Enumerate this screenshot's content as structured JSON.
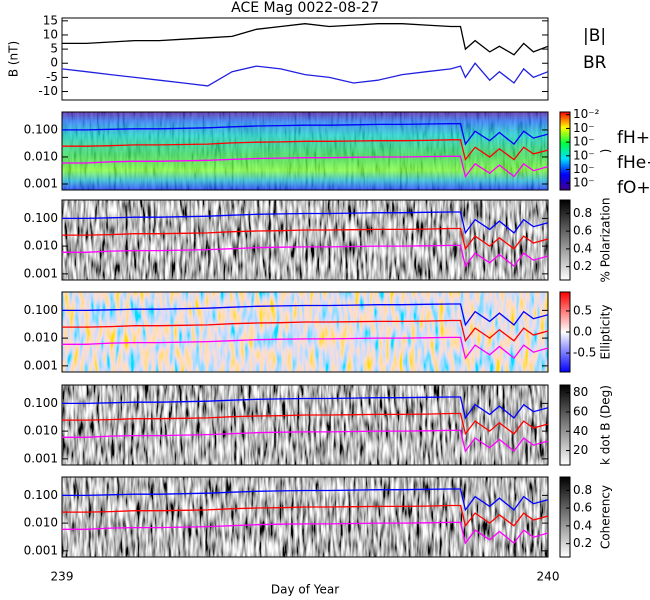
{
  "chart_data": [
    {
      "type": "line",
      "title": "ACE Mag 0022-08-27",
      "ylabel": "B (nT)",
      "ylim": [
        -13,
        16
      ],
      "yticks": [
        -10,
        -5,
        0,
        5,
        10,
        15
      ],
      "xlim": [
        239,
        240
      ],
      "legend": "right",
      "x": [
        239,
        239.05,
        239.1,
        239.15,
        239.2,
        239.25,
        239.3,
        239.35,
        239.4,
        239.45,
        239.5,
        239.55,
        239.6,
        239.65,
        239.7,
        239.75,
        239.8,
        239.82,
        239.83,
        239.85,
        239.88,
        239.9,
        239.93,
        239.95,
        239.97,
        240
      ],
      "series": [
        {
          "name": "|B|",
          "color": "#000000",
          "values": [
            7,
            7,
            7.5,
            8,
            8,
            8.5,
            9,
            9.5,
            12,
            13,
            14,
            13,
            13.5,
            14,
            14,
            13.5,
            13,
            13,
            5,
            8,
            4,
            6,
            3,
            7,
            4,
            6
          ]
        },
        {
          "name": "BR",
          "color": "#2020e0",
          "values": [
            -2,
            -3,
            -4,
            -5,
            -6,
            -7,
            -8,
            -3,
            -1,
            -2,
            -4,
            -5,
            -7,
            -6,
            -4,
            -3,
            -2,
            -1,
            -5,
            0,
            -6,
            -3,
            -7,
            -2,
            -5,
            -3
          ]
        }
      ]
    },
    {
      "type": "line",
      "log_y": true,
      "ylim": [
        0.0006,
        0.46
      ],
      "yticks": [
        0.001,
        {
          "value": 0.01,
          "label": "0.010"
        },
        {
          "value": 0.1,
          "label": "0.100"
        }
      ],
      "xlim": [
        239,
        240
      ],
      "legend": "right",
      "colorbar": {
        "label": ")",
        "lim": [
          -7.5,
          -1.8
        ],
        "ticks": [
          {
            "value": -2,
            "label": "10⁻²"
          },
          {
            "value": -3,
            "label": "10⁻"
          },
          {
            "value": -4,
            "label": "10⁻"
          },
          {
            "value": -5,
            "label": "10⁻"
          },
          {
            "value": -6,
            "label": "10⁻"
          },
          {
            "value": -7,
            "label": "10⁻"
          }
        ]
      },
      "x": [
        239,
        239.05,
        239.1,
        239.15,
        239.2,
        239.25,
        239.3,
        239.35,
        239.4,
        239.45,
        239.5,
        239.55,
        239.6,
        239.65,
        239.7,
        239.75,
        239.8,
        239.82,
        239.83,
        239.85,
        239.88,
        239.9,
        239.93,
        239.95,
        239.97,
        240
      ],
      "series": [
        {
          "name": "fH+",
          "color": "#0000ff",
          "values": [
            0.1,
            0.1,
            0.105,
            0.11,
            0.11,
            0.115,
            0.12,
            0.13,
            0.14,
            0.145,
            0.15,
            0.15,
            0.155,
            0.16,
            0.16,
            0.165,
            0.17,
            0.17,
            0.03,
            0.09,
            0.04,
            0.08,
            0.03,
            0.09,
            0.05,
            0.07
          ]
        },
        {
          "name": "fHe+",
          "color": "#ff0000",
          "values": [
            0.025,
            0.025,
            0.026,
            0.028,
            0.028,
            0.029,
            0.03,
            0.033,
            0.035,
            0.036,
            0.038,
            0.038,
            0.039,
            0.04,
            0.04,
            0.041,
            0.043,
            0.043,
            0.008,
            0.023,
            0.01,
            0.02,
            0.008,
            0.023,
            0.013,
            0.018
          ]
        },
        {
          "name": "fO+",
          "color": "#ff00ff",
          "values": [
            0.006,
            0.006,
            0.0066,
            0.0069,
            0.0069,
            0.0072,
            0.0075,
            0.0081,
            0.0088,
            0.0091,
            0.0094,
            0.0094,
            0.0097,
            0.01,
            0.01,
            0.0103,
            0.0106,
            0.0106,
            0.0019,
            0.0056,
            0.0025,
            0.005,
            0.0019,
            0.0056,
            0.0031,
            0.0044
          ]
        }
      ]
    },
    {
      "type": "line",
      "log_y": true,
      "ylim": [
        0.0006,
        0.46
      ],
      "yticks": [
        0.001,
        {
          "value": 0.01,
          "label": "0.010"
        },
        {
          "value": 0.1,
          "label": "0.100"
        }
      ],
      "xlim": [
        239,
        240
      ],
      "colorbar": {
        "label": "% Polarization",
        "lim": [
          0.05,
          0.95
        ],
        "ticks": [
          0.2,
          0.4,
          0.6,
          0.8
        ]
      },
      "x": [
        239,
        239.05,
        239.1,
        239.15,
        239.2,
        239.25,
        239.3,
        239.35,
        239.4,
        239.45,
        239.5,
        239.55,
        239.6,
        239.65,
        239.7,
        239.75,
        239.8,
        239.82,
        239.83,
        239.85,
        239.88,
        239.9,
        239.93,
        239.95,
        239.97,
        240
      ],
      "series": [
        {
          "color": "#0000ff",
          "values": [
            0.1,
            0.1,
            0.105,
            0.11,
            0.11,
            0.115,
            0.12,
            0.13,
            0.14,
            0.145,
            0.15,
            0.15,
            0.155,
            0.16,
            0.16,
            0.165,
            0.17,
            0.17,
            0.03,
            0.09,
            0.04,
            0.08,
            0.03,
            0.09,
            0.05,
            0.07
          ]
        },
        {
          "color": "#ff0000",
          "values": [
            0.025,
            0.025,
            0.026,
            0.028,
            0.028,
            0.029,
            0.03,
            0.033,
            0.035,
            0.036,
            0.038,
            0.038,
            0.039,
            0.04,
            0.04,
            0.041,
            0.043,
            0.043,
            0.008,
            0.023,
            0.01,
            0.02,
            0.008,
            0.023,
            0.013,
            0.018
          ]
        },
        {
          "color": "#ff00ff",
          "values": [
            0.006,
            0.006,
            0.0066,
            0.0069,
            0.0069,
            0.0072,
            0.0075,
            0.0081,
            0.0088,
            0.0091,
            0.0094,
            0.0094,
            0.0097,
            0.01,
            0.01,
            0.0103,
            0.0106,
            0.0106,
            0.0019,
            0.0056,
            0.0025,
            0.005,
            0.0019,
            0.0056,
            0.0031,
            0.0044
          ]
        }
      ]
    },
    {
      "type": "line",
      "log_y": true,
      "ylim": [
        0.0006,
        0.46
      ],
      "yticks": [
        0.001,
        {
          "value": 0.01,
          "label": "0.010"
        },
        {
          "value": 0.1,
          "label": "0.100"
        }
      ],
      "xlim": [
        239,
        240
      ],
      "colorbar": {
        "label": "Ellipticity",
        "lim": [
          -0.95,
          0.95
        ],
        "ticks": [
          -0.5,
          {
            "value": 0,
            "label": "0.0"
          },
          0.5
        ]
      },
      "x": [
        239,
        239.05,
        239.1,
        239.15,
        239.2,
        239.25,
        239.3,
        239.35,
        239.4,
        239.45,
        239.5,
        239.55,
        239.6,
        239.65,
        239.7,
        239.75,
        239.8,
        239.82,
        239.83,
        239.85,
        239.88,
        239.9,
        239.93,
        239.95,
        239.97,
        240
      ],
      "series": [
        {
          "color": "#0000ff",
          "values": [
            0.1,
            0.1,
            0.105,
            0.11,
            0.11,
            0.115,
            0.12,
            0.13,
            0.14,
            0.145,
            0.15,
            0.15,
            0.155,
            0.16,
            0.16,
            0.165,
            0.17,
            0.17,
            0.03,
            0.09,
            0.04,
            0.08,
            0.03,
            0.09,
            0.05,
            0.07
          ]
        },
        {
          "color": "#ff0000",
          "values": [
            0.025,
            0.025,
            0.026,
            0.028,
            0.028,
            0.029,
            0.03,
            0.033,
            0.035,
            0.036,
            0.038,
            0.038,
            0.039,
            0.04,
            0.04,
            0.041,
            0.043,
            0.043,
            0.008,
            0.023,
            0.01,
            0.02,
            0.008,
            0.023,
            0.013,
            0.018
          ]
        },
        {
          "color": "#ff00ff",
          "values": [
            0.006,
            0.006,
            0.0066,
            0.0069,
            0.0069,
            0.0072,
            0.0075,
            0.0081,
            0.0088,
            0.0091,
            0.0094,
            0.0094,
            0.0097,
            0.01,
            0.01,
            0.0103,
            0.0106,
            0.0106,
            0.0019,
            0.0056,
            0.0025,
            0.005,
            0.0019,
            0.0056,
            0.0031,
            0.0044
          ]
        }
      ]
    },
    {
      "type": "line",
      "log_y": true,
      "ylim": [
        0.0006,
        0.46
      ],
      "yticks": [
        0.001,
        {
          "value": 0.01,
          "label": "0.010"
        },
        {
          "value": 0.1,
          "label": "0.100"
        }
      ],
      "xlim": [
        239,
        240
      ],
      "colorbar": {
        "label": "k dot B (Deg)",
        "lim": [
          5,
          88
        ],
        "ticks": [
          20,
          40,
          60,
          80
        ]
      },
      "x": [
        239,
        239.05,
        239.1,
        239.15,
        239.2,
        239.25,
        239.3,
        239.35,
        239.4,
        239.45,
        239.5,
        239.55,
        239.6,
        239.65,
        239.7,
        239.75,
        239.8,
        239.82,
        239.83,
        239.85,
        239.88,
        239.9,
        239.93,
        239.95,
        239.97,
        240
      ],
      "series": [
        {
          "color": "#0000ff",
          "values": [
            0.1,
            0.1,
            0.105,
            0.11,
            0.11,
            0.115,
            0.12,
            0.13,
            0.14,
            0.145,
            0.15,
            0.15,
            0.155,
            0.16,
            0.16,
            0.165,
            0.17,
            0.17,
            0.03,
            0.09,
            0.04,
            0.08,
            0.03,
            0.09,
            0.05,
            0.07
          ]
        },
        {
          "color": "#ff0000",
          "values": [
            0.025,
            0.025,
            0.026,
            0.028,
            0.028,
            0.029,
            0.03,
            0.033,
            0.035,
            0.036,
            0.038,
            0.038,
            0.039,
            0.04,
            0.04,
            0.041,
            0.043,
            0.043,
            0.008,
            0.023,
            0.01,
            0.02,
            0.008,
            0.023,
            0.013,
            0.018
          ]
        },
        {
          "color": "#ff00ff",
          "values": [
            0.006,
            0.006,
            0.0066,
            0.0069,
            0.0069,
            0.0072,
            0.0075,
            0.0081,
            0.0088,
            0.0091,
            0.0094,
            0.0094,
            0.0097,
            0.01,
            0.01,
            0.0103,
            0.0106,
            0.0106,
            0.0019,
            0.0056,
            0.0025,
            0.005,
            0.0019,
            0.0056,
            0.0031,
            0.0044
          ]
        }
      ]
    },
    {
      "type": "line",
      "log_y": true,
      "ylim": [
        0.0006,
        0.46
      ],
      "yticks": [
        0.001,
        {
          "value": 0.01,
          "label": "0.010"
        },
        {
          "value": 0.1,
          "label": "0.100"
        }
      ],
      "xlim": [
        239,
        240
      ],
      "xticks": [
        239,
        240
      ],
      "xlabel": "Day of Year",
      "colorbar": {
        "label": "Coherency",
        "lim": [
          0.05,
          0.95
        ],
        "ticks": [
          0.2,
          0.4,
          0.6,
          0.8
        ]
      },
      "x": [
        239,
        239.05,
        239.1,
        239.15,
        239.2,
        239.25,
        239.3,
        239.35,
        239.4,
        239.45,
        239.5,
        239.55,
        239.6,
        239.65,
        239.7,
        239.75,
        239.8,
        239.82,
        239.83,
        239.85,
        239.88,
        239.9,
        239.93,
        239.95,
        239.97,
        240
      ],
      "series": [
        {
          "color": "#0000ff",
          "values": [
            0.1,
            0.1,
            0.105,
            0.11,
            0.11,
            0.115,
            0.12,
            0.13,
            0.14,
            0.145,
            0.15,
            0.15,
            0.155,
            0.16,
            0.16,
            0.165,
            0.17,
            0.17,
            0.03,
            0.09,
            0.04,
            0.08,
            0.03,
            0.09,
            0.05,
            0.07
          ]
        },
        {
          "color": "#ff0000",
          "values": [
            0.025,
            0.025,
            0.026,
            0.028,
            0.028,
            0.029,
            0.03,
            0.033,
            0.035,
            0.036,
            0.038,
            0.038,
            0.039,
            0.04,
            0.04,
            0.041,
            0.043,
            0.043,
            0.008,
            0.023,
            0.01,
            0.02,
            0.008,
            0.023,
            0.013,
            0.018
          ]
        },
        {
          "color": "#ff00ff",
          "values": [
            0.006,
            0.006,
            0.0066,
            0.0069,
            0.0069,
            0.0072,
            0.0075,
            0.0081,
            0.0088,
            0.0091,
            0.0094,
            0.0094,
            0.0097,
            0.01,
            0.01,
            0.0103,
            0.0106,
            0.0106,
            0.0019,
            0.0056,
            0.0025,
            0.005,
            0.0019,
            0.0056,
            0.0031,
            0.0044
          ]
        }
      ]
    }
  ]
}
